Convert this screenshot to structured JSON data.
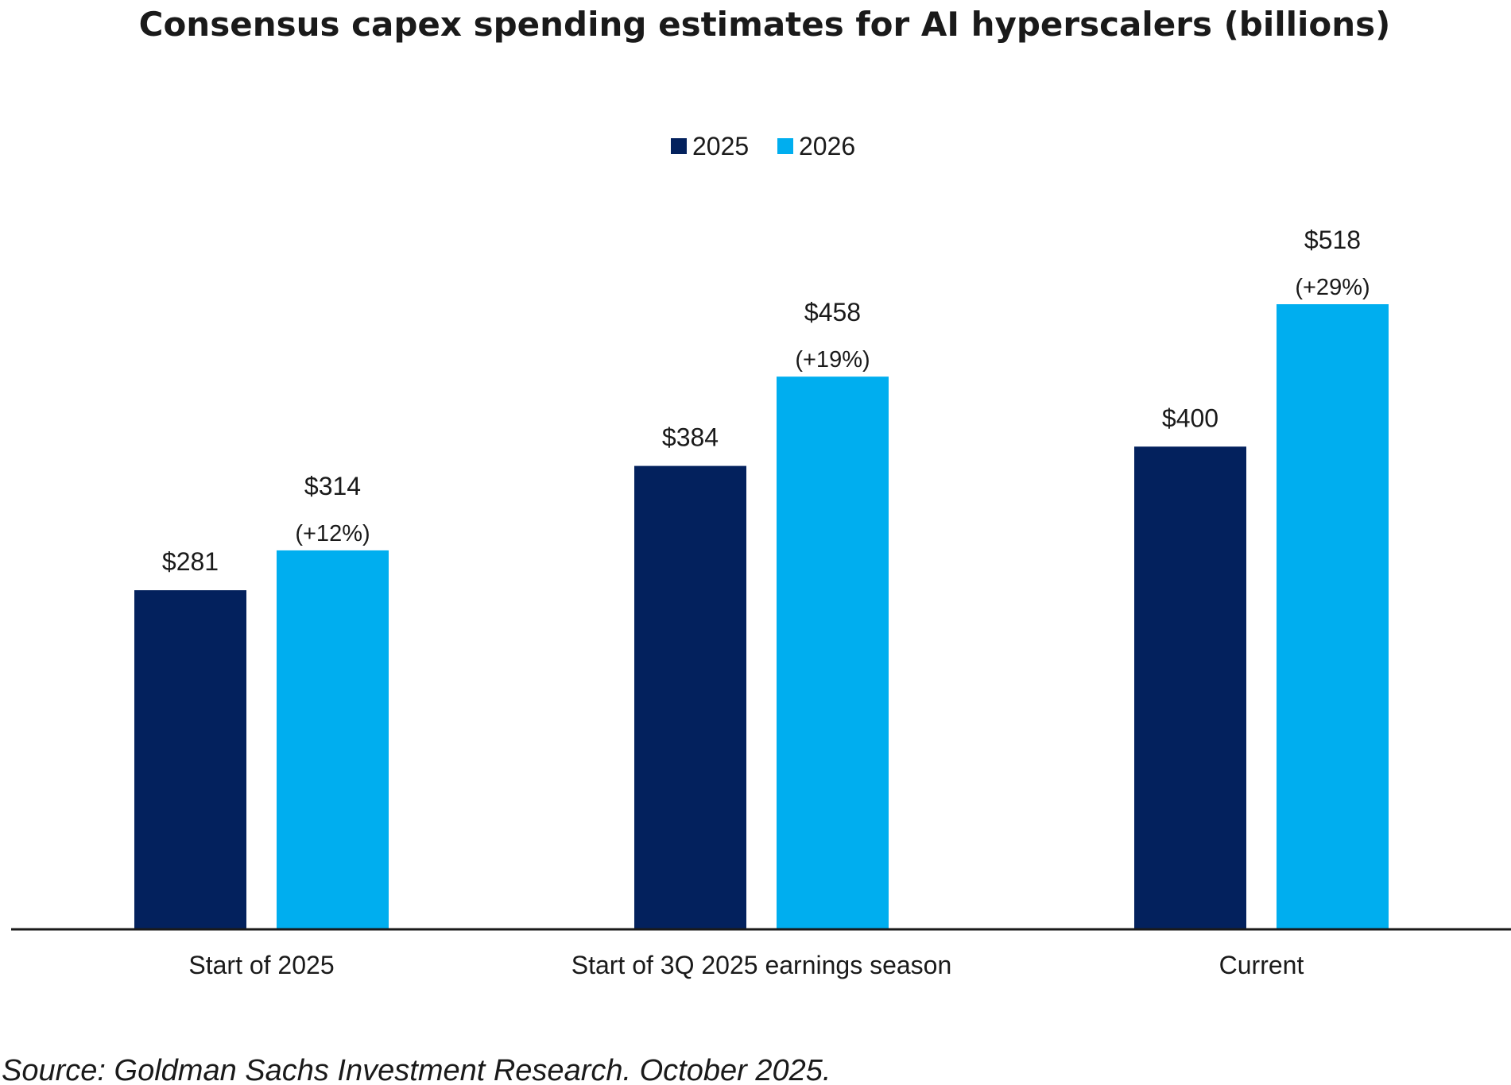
{
  "chart_data": {
    "type": "bar",
    "title": "Consensus capex spending estimates for AI hyperscalers (billions)",
    "categories": [
      "Start of 2025",
      "Start of 3Q 2025 earnings season",
      "Current"
    ],
    "series": [
      {
        "name": "2025",
        "color": "#03215D",
        "values": [
          281,
          384,
          400
        ],
        "value_labels": [
          "$281",
          "$384",
          "$400"
        ]
      },
      {
        "name": "2026",
        "color": "#00AEEF",
        "values": [
          314,
          458,
          518
        ],
        "value_labels": [
          "$314",
          "$458",
          "$518"
        ],
        "change_labels": [
          "(+12%)",
          "(+19%)",
          "(+29%)"
        ]
      }
    ],
    "ylim": [
      0,
      560
    ],
    "grid": false,
    "legend_position": "top-center",
    "source": "Source: Goldman Sachs Investment Research. October 2025."
  }
}
